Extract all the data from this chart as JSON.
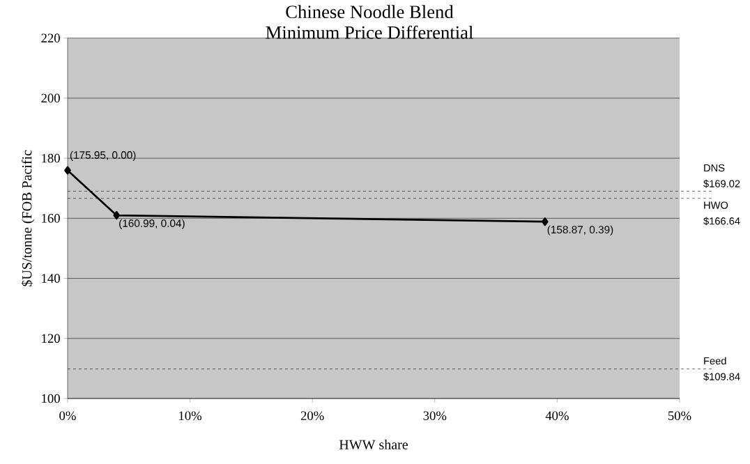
{
  "chart_data": {
    "type": "line",
    "title": "Chinese Noodle Blend",
    "subtitle": "Minimum Price Differential",
    "xlabel": "HWW share",
    "ylabel": "$US/tonne (FOB Pacific",
    "series": [
      {
        "color": "#000000",
        "x": [
          0,
          0.04,
          0.39
        ],
        "values": [
          175.95,
          160.99,
          158.87
        ],
        "value_labels": [
          "(175.95, 0.00)",
          "(160.99, 0.04)",
          "(158.87, 0.39)"
        ]
      }
    ],
    "xlim": [
      0,
      0.5
    ],
    "xticks": [
      {
        "value": 0,
        "label": "0%"
      },
      {
        "value": 0.1,
        "label": "10%"
      },
      {
        "value": 0.2,
        "label": "20%"
      },
      {
        "value": 0.3,
        "label": "30%"
      },
      {
        "value": 0.4,
        "label": "40%"
      },
      {
        "value": 0.5,
        "label": "50%"
      }
    ],
    "ylim": [
      100,
      220
    ],
    "yticks": [
      100,
      120,
      140,
      160,
      180,
      200,
      220
    ],
    "grid": "y",
    "marker": "diamond",
    "line_style": "solid",
    "ref_lines": [
      {
        "axis": "y",
        "value": 169.02,
        "label": "DNS $169.02",
        "color": "#000000",
        "line_style": "dashed"
      },
      {
        "axis": "y",
        "value": 166.64,
        "label": "HWO $166.64",
        "color": "#000000",
        "line_style": "dashed"
      },
      {
        "axis": "y",
        "value": 109.84,
        "label": "Feed $109.84",
        "color": "#000000",
        "line_style": "dashed"
      }
    ]
  }
}
